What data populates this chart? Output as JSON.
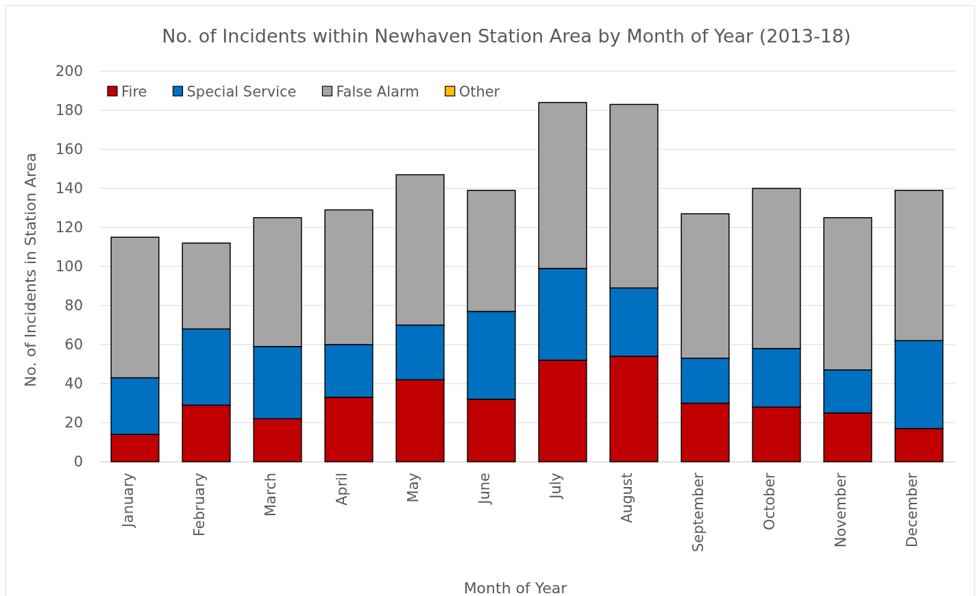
{
  "chart_data": {
    "type": "bar",
    "title": "No. of Incidents within Newhaven Station Area by Month of Year (2013-18)",
    "xlabel": "Month of Year",
    "ylabel": "No. of Incidents in Station Area",
    "categories": [
      "January",
      "February",
      "March",
      "April",
      "May",
      "June",
      "July",
      "August",
      "September",
      "October",
      "November",
      "December"
    ],
    "stacked": true,
    "series": [
      {
        "name": "Fire",
        "color": "#c00000",
        "values": [
          14,
          29,
          22,
          33,
          42,
          32,
          52,
          54,
          30,
          28,
          25,
          17
        ]
      },
      {
        "name": "Special Service",
        "color": "#0070c0",
        "values": [
          29,
          39,
          37,
          27,
          28,
          45,
          47,
          35,
          23,
          30,
          22,
          45
        ]
      },
      {
        "name": "False Alarm",
        "color": "#a5a5a5",
        "values": [
          72,
          44,
          66,
          69,
          77,
          62,
          85,
          94,
          74,
          82,
          78,
          77
        ]
      },
      {
        "name": "Other",
        "color": "#ffc000",
        "values": [
          0,
          0,
          0,
          0,
          0,
          0,
          0,
          0,
          0,
          0,
          0,
          0
        ]
      }
    ],
    "ylim": [
      0,
      200
    ],
    "yticks": [
      0,
      20,
      40,
      60,
      80,
      100,
      120,
      140,
      160,
      180,
      200
    ],
    "grid": "y",
    "legend": "top left"
  }
}
